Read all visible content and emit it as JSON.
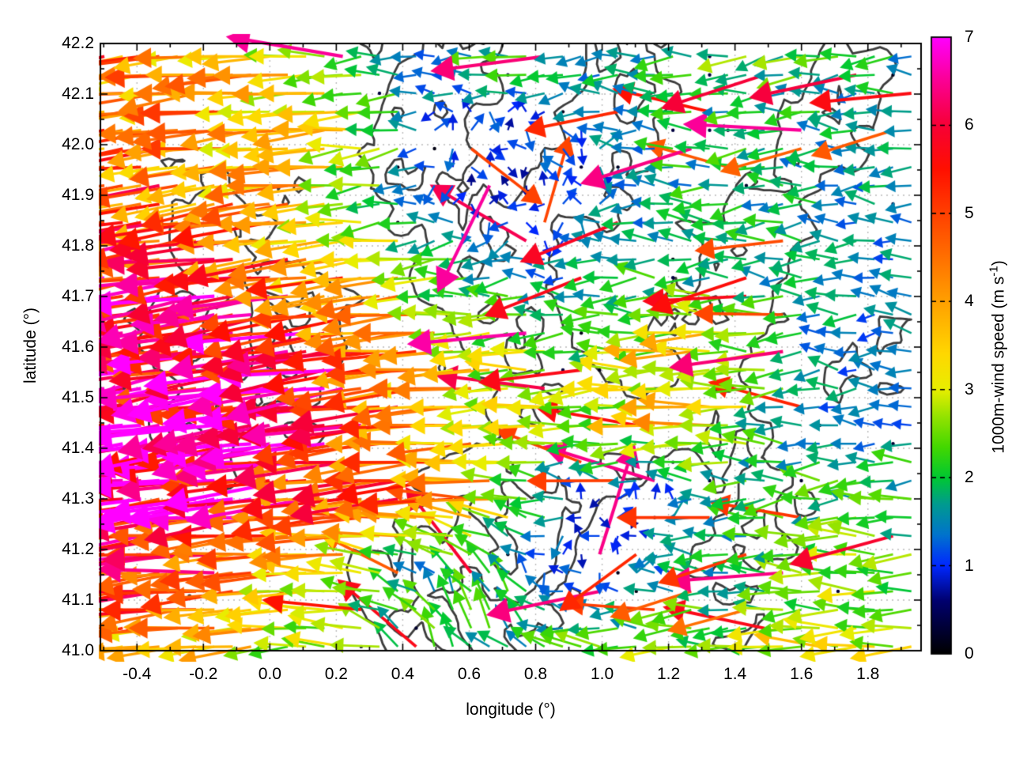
{
  "chart_data": {
    "type": "quiver",
    "title": "",
    "xlabel": "longitude (°)",
    "ylabel": "latitude (°)",
    "xlim": [
      -0.51,
      1.96
    ],
    "ylim": [
      41.0,
      42.2
    ],
    "grid": "dotted",
    "xticks": [
      -0.4,
      -0.2,
      0.0,
      0.2,
      0.4,
      0.6,
      0.8,
      1.0,
      1.2,
      1.4,
      1.6,
      1.8
    ],
    "xtick_labels": [
      "-0.4",
      "-0.2",
      "0.0",
      "0.2",
      "0.4",
      "0.6",
      "0.8",
      "1.0",
      "1.2",
      "1.4",
      "1.6",
      "1.8"
    ],
    "yticks": [
      41.0,
      41.1,
      41.2,
      41.3,
      41.4,
      41.5,
      41.6,
      41.7,
      41.8,
      41.9,
      42.0,
      42.1,
      42.2
    ],
    "ytick_labels": [
      "41.0",
      "41.1",
      "41.2",
      "41.3",
      "41.4",
      "41.5",
      "41.6",
      "41.7",
      "41.8",
      "41.9",
      "42.0",
      "42.1",
      "42.2"
    ],
    "x_minor_step": 0.1,
    "y_minor_step": 0.05,
    "style": {
      "background": "#ffffff",
      "frame_color": "#000000",
      "grid_color": "#bbbbbb",
      "contour_color": "#3c3c3c"
    },
    "colorbar": {
      "label_prefix": "1000m-wind speed (m s",
      "label_sup": "-1",
      "label_suffix": ")",
      "min": 0,
      "max": 7,
      "ticks": [
        0,
        1,
        2,
        3,
        4,
        5,
        6,
        7
      ],
      "tick_labels": [
        "0",
        "1",
        "2",
        "3",
        "4",
        "5",
        "6",
        "7"
      ],
      "palette": [
        [
          0.0,
          "#000000"
        ],
        [
          0.6,
          "#00006e"
        ],
        [
          1.0,
          "#0028ff"
        ],
        [
          1.35,
          "#0073cd"
        ],
        [
          1.7,
          "#009b8f"
        ],
        [
          2.0,
          "#00c832"
        ],
        [
          2.35,
          "#44d800"
        ],
        [
          2.7,
          "#96e300"
        ],
        [
          3.0,
          "#e8ee00"
        ],
        [
          3.4,
          "#ffd800"
        ],
        [
          4.0,
          "#ffa000"
        ],
        [
          4.5,
          "#ff7000"
        ],
        [
          5.0,
          "#ff4000"
        ],
        [
          5.5,
          "#ff1000"
        ],
        [
          6.0,
          "#f70036"
        ],
        [
          6.5,
          "#fb0093"
        ],
        [
          7.0,
          "#ff00ff"
        ]
      ]
    },
    "wind_field": {
      "units": "m s-1",
      "lon": [
        -0.5,
        -0.3,
        -0.1,
        0.1,
        0.3,
        0.5,
        0.7,
        0.9,
        1.1,
        1.3,
        1.5,
        1.7,
        1.9
      ],
      "lat_north_to_south": [
        42.2,
        42.05,
        41.9,
        41.75,
        41.6,
        41.45,
        41.3,
        41.15,
        41.0
      ],
      "u": [
        [
          -4.5,
          -4.2,
          -3.8,
          -3.2,
          -2.2,
          -1.6,
          -2.6,
          -2.2,
          -1.8,
          -1.8,
          -2.4,
          -2.0,
          -1.8
        ],
        [
          -4.6,
          -4.3,
          -4.0,
          -3.5,
          -2.8,
          -1.2,
          -1.0,
          -1.2,
          -1.5,
          -2.0,
          -2.0,
          -1.8,
          -1.6
        ],
        [
          -5.0,
          -4.8,
          -4.2,
          -3.6,
          -2.5,
          -1.0,
          -0.8,
          -1.0,
          -1.5,
          -1.8,
          -1.8,
          -1.7,
          -1.5
        ],
        [
          -5.8,
          -5.6,
          -5.2,
          -4.6,
          -3.8,
          -2.5,
          -1.5,
          -1.5,
          -1.8,
          -1.8,
          -1.8,
          -1.7,
          -1.5
        ],
        [
          -6.6,
          -6.4,
          -6.1,
          -5.8,
          -5.2,
          -3.8,
          -2.8,
          -2.2,
          -2.6,
          -3.6,
          -2.2,
          -1.5,
          -1.4
        ],
        [
          -6.9,
          -6.7,
          -6.4,
          -6.1,
          -5.4,
          -4.2,
          -3.2,
          -2.8,
          -3.0,
          -3.6,
          -2.2,
          -1.5,
          -1.5
        ],
        [
          -6.5,
          -6.3,
          -6.0,
          -5.4,
          -4.8,
          -4.6,
          -3.6,
          -1.2,
          -0.8,
          -1.5,
          -1.8,
          -2.2,
          -2.2
        ],
        [
          -5.8,
          -5.4,
          -4.8,
          -3.8,
          -2.5,
          -1.0,
          -0.8,
          -1.0,
          -1.2,
          -1.8,
          -2.2,
          -2.4,
          -2.6
        ],
        [
          -4.0,
          -3.6,
          -3.2,
          -2.8,
          -2.5,
          -1.2,
          -1.5,
          -2.2,
          -2.4,
          -2.6,
          -2.8,
          -3.0,
          -3.0
        ]
      ],
      "v": [
        [
          -0.5,
          -0.4,
          -0.3,
          -0.2,
          0.0,
          0.0,
          -0.3,
          0.0,
          0.0,
          0.0,
          -0.6,
          -0.2,
          0.0
        ],
        [
          -0.5,
          -0.5,
          -0.4,
          -0.3,
          -0.2,
          0.0,
          0.0,
          0.0,
          0.0,
          0.0,
          0.0,
          0.0,
          0.0
        ],
        [
          -0.6,
          -0.6,
          -0.5,
          -0.4,
          -0.2,
          0.0,
          0.0,
          0.0,
          0.0,
          0.0,
          0.0,
          0.0,
          0.0
        ],
        [
          -0.9,
          -0.9,
          -0.8,
          -0.6,
          -0.4,
          -0.2,
          0.0,
          0.0,
          0.0,
          0.0,
          0.0,
          0.0,
          0.0
        ],
        [
          -1.1,
          -1.1,
          -1.0,
          -0.9,
          -0.6,
          -0.3,
          -0.2,
          0.0,
          0.0,
          0.0,
          0.0,
          0.0,
          0.0
        ],
        [
          -1.1,
          -1.1,
          -1.0,
          -0.9,
          -0.7,
          -0.4,
          -0.2,
          0.0,
          0.0,
          0.0,
          0.0,
          0.0,
          0.0
        ],
        [
          -0.9,
          -0.9,
          -0.8,
          -0.6,
          -0.4,
          -0.2,
          0.2,
          0.2,
          0.2,
          0.0,
          0.0,
          0.0,
          0.0
        ],
        [
          -0.6,
          -0.5,
          -0.3,
          0.0,
          0.5,
          1.2,
          1.8,
          0.3,
          0.2,
          0.0,
          0.0,
          0.0,
          0.0
        ],
        [
          -0.4,
          -0.3,
          -0.2,
          0.0,
          0.5,
          2.2,
          1.5,
          0.2,
          0.0,
          0.0,
          0.0,
          0.0,
          0.0
        ]
      ]
    },
    "terrain_contours": {
      "lon_range": [
        -0.51,
        1.96
      ],
      "lat_range": [
        41.0,
        42.2
      ],
      "levels": [
        5.15,
        6.55
      ],
      "grid_rows_north_to_south": [
        [
          3,
          3,
          3,
          3,
          3,
          3,
          4,
          5,
          6,
          6,
          5,
          4,
          6,
          6,
          4,
          3,
          3,
          4,
          6,
          5,
          4
        ],
        [
          3,
          3,
          3,
          3,
          3,
          3,
          4,
          5,
          7,
          6,
          5,
          4,
          6,
          7,
          5,
          3,
          3,
          5,
          7,
          5,
          3
        ],
        [
          3,
          4,
          4,
          3,
          3,
          3,
          4,
          6,
          6,
          5,
          4,
          5,
          6,
          6,
          4,
          3,
          4,
          6,
          6,
          4,
          3
        ],
        [
          3,
          4,
          5,
          5,
          4,
          4,
          4,
          6,
          6,
          5,
          4,
          6,
          6,
          5,
          4,
          4,
          5,
          6,
          5,
          4,
          3
        ],
        [
          3,
          4,
          5,
          6,
          5,
          4,
          4,
          5,
          6,
          6,
          6,
          6,
          5,
          4,
          4,
          5,
          6,
          6,
          4,
          3,
          3
        ],
        [
          3,
          4,
          6,
          6,
          6,
          5,
          4,
          4,
          6,
          7,
          6,
          5,
          4,
          4,
          5,
          6,
          6,
          5,
          4,
          3,
          3
        ],
        [
          4,
          5,
          6,
          7,
          6,
          6,
          5,
          4,
          5,
          6,
          7,
          6,
          4,
          4,
          5,
          6,
          6,
          4,
          4,
          5,
          4
        ],
        [
          4,
          5,
          6,
          7,
          7,
          6,
          5,
          4,
          4,
          6,
          6,
          6,
          5,
          4,
          5,
          6,
          5,
          4,
          4,
          5,
          4
        ],
        [
          4,
          5,
          5,
          6,
          6,
          6,
          4,
          4,
          4,
          5,
          6,
          6,
          6,
          5,
          5,
          6,
          4,
          4,
          5,
          5,
          4
        ],
        [
          4,
          5,
          6,
          6,
          5,
          5,
          4,
          3,
          4,
          4,
          6,
          6,
          6,
          6,
          5,
          6,
          5,
          4,
          4,
          4,
          4
        ],
        [
          3,
          4,
          5,
          5,
          4,
          4,
          3,
          4,
          5,
          6,
          6,
          7,
          6,
          5,
          4,
          5,
          6,
          5,
          4,
          4,
          3
        ],
        [
          3,
          4,
          4,
          5,
          4,
          3,
          3,
          5,
          6,
          6,
          7,
          7,
          5,
          4,
          3,
          5,
          6,
          5,
          4,
          3,
          3
        ],
        [
          3,
          3,
          4,
          4,
          3,
          3,
          4,
          6,
          7,
          7,
          6,
          7,
          4,
          3,
          4,
          5,
          6,
          4,
          3,
          3,
          3
        ],
        [
          3,
          4,
          5,
          4,
          3,
          3,
          4,
          6,
          7,
          6,
          6,
          5,
          4,
          3,
          4,
          5,
          5,
          4,
          3,
          3,
          3
        ],
        [
          3,
          4,
          4,
          3,
          3,
          3,
          4,
          5,
          6,
          7,
          5,
          4,
          3,
          3,
          4,
          5,
          4,
          3,
          3,
          3,
          3
        ]
      ]
    }
  }
}
